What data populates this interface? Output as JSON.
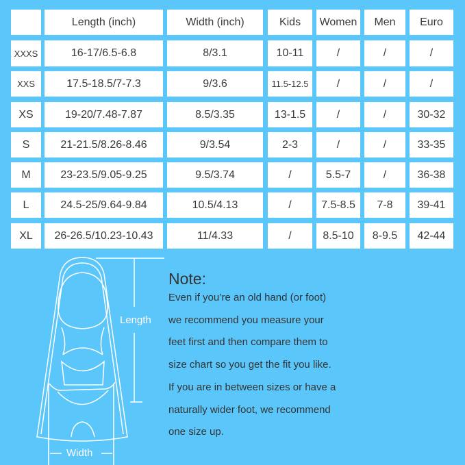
{
  "table": {
    "headers": [
      "",
      "Length (inch)",
      "Width (inch)",
      "Kids",
      "Women",
      "Men",
      "Euro"
    ],
    "rows": [
      [
        "XXXS",
        "16-17/6.5-6.8",
        "8/3.1",
        "10-11",
        "/",
        "/",
        "/"
      ],
      [
        "XXS",
        "17.5-18.5/7-7.3",
        "9/3.6",
        "11.5-12.5",
        "/",
        "/",
        "/"
      ],
      [
        "XS",
        "19-20/7.48-7.87",
        "8.5/3.35",
        "13-1.5",
        "/",
        "/",
        "30-32"
      ],
      [
        "S",
        "21-21.5/8.26-8.46",
        "9/3.54",
        "2-3",
        "/",
        "/",
        "33-35"
      ],
      [
        "M",
        "23-23.5/9.05-9.25",
        "9.5/3.74",
        "/",
        "5.5-7",
        "/",
        "36-38"
      ],
      [
        "L",
        "24.5-25/9.64-9.84",
        "10.5/4.13",
        "/",
        "7.5-8.5",
        "7-8",
        "39-41"
      ],
      [
        "XL",
        "26-26.5/10.23-10.43",
        "11/4.33",
        "/",
        "8.5-10",
        "8-9.5",
        "42-44"
      ]
    ]
  },
  "diagram": {
    "length_label": "Length",
    "width_label": "Width"
  },
  "note": {
    "title": "Note:",
    "lines": [
      "Even if you’re an old hand (or foot)",
      "we recommend you measure your",
      "feet first and then compare them to",
      "size chart so you get the fit you like.",
      "If you are in between sizes or have a",
      "naturally wider foot, we recommend",
      "one size up."
    ]
  },
  "colors": {
    "background": "#5bc6fa",
    "cell": "#ffffff"
  }
}
